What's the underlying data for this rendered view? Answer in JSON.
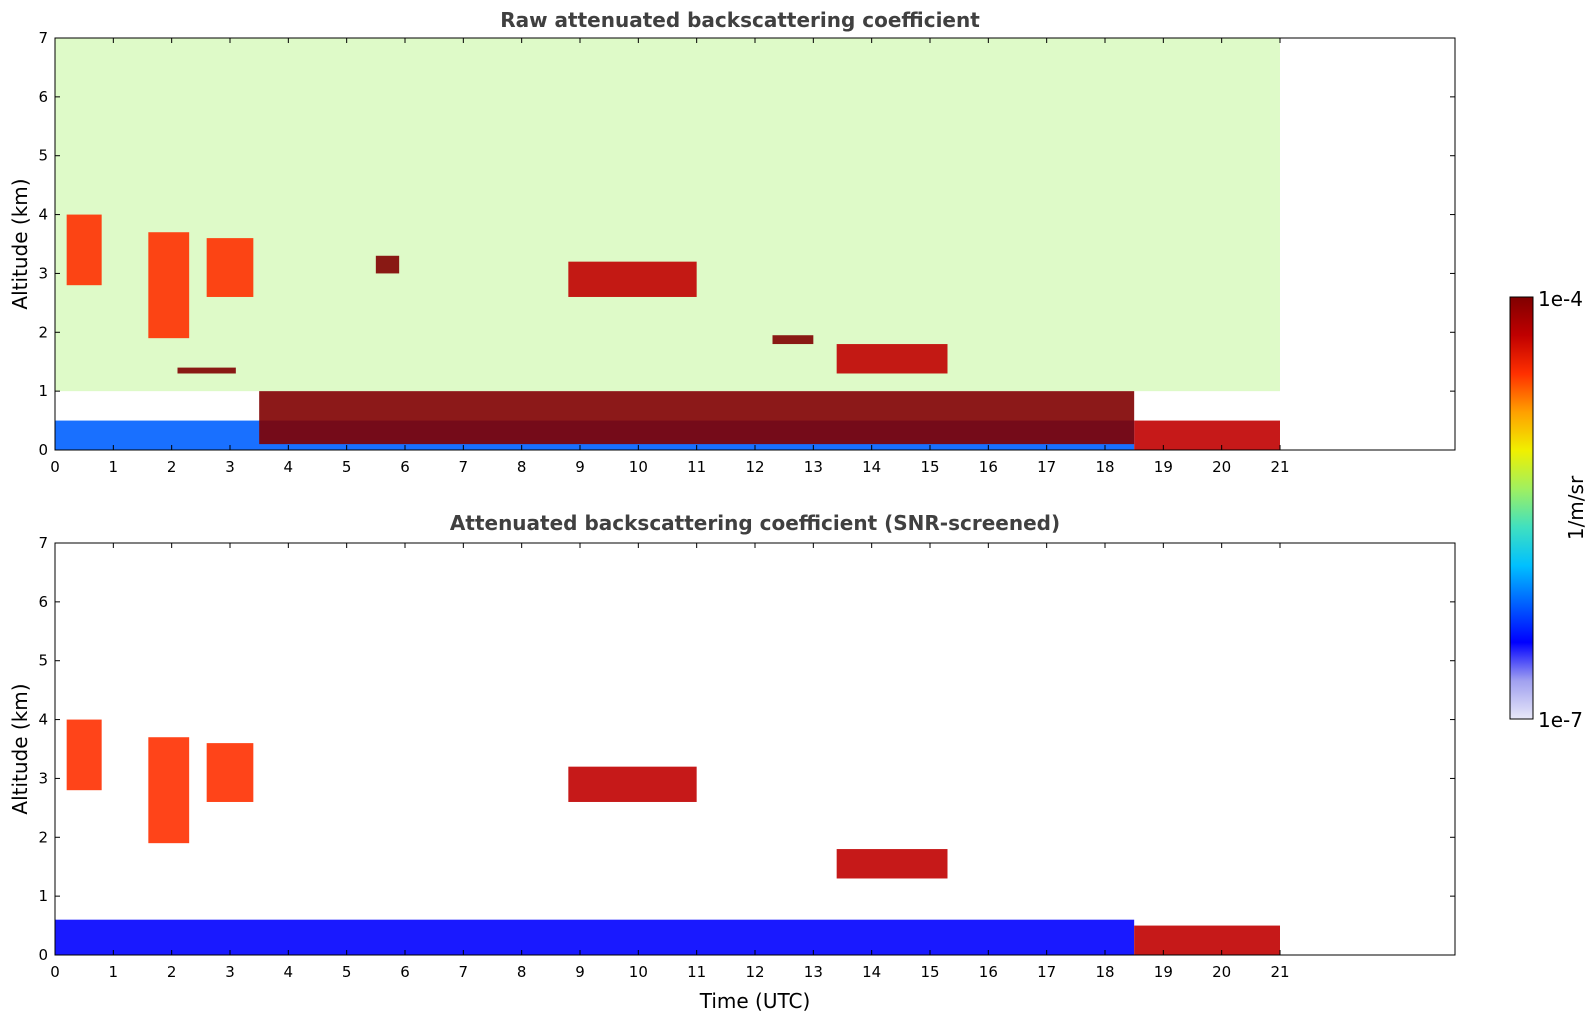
{
  "chart_data": [
    {
      "type": "heatmap",
      "title": "Raw attenuated backscattering coefficient",
      "xlabel": "",
      "ylabel": "Altitude (km)",
      "xlim": [
        0,
        24
      ],
      "ylim": [
        0,
        7
      ],
      "xticks": [
        "0",
        "1",
        "2",
        "3",
        "4",
        "5",
        "6",
        "7",
        "8",
        "9",
        "10",
        "11",
        "12",
        "13",
        "14",
        "15",
        "16",
        "17",
        "18",
        "19",
        "20",
        "21"
      ],
      "yticks": [
        "0",
        "1",
        "2",
        "3",
        "4",
        "5",
        "6",
        "7"
      ],
      "data_extent_hours": [
        0,
        21
      ],
      "features": [
        {
          "name": "noise-background",
          "t0": 0,
          "t1": 21,
          "z0": 1.0,
          "z1": 7.0,
          "level": 0.55
        },
        {
          "name": "boundary-layer",
          "t0": 0,
          "t1": 18.5,
          "z0": 0.0,
          "z1": 0.5,
          "level": 0.25
        },
        {
          "name": "cirrus-early",
          "t0": 0.2,
          "t1": 0.8,
          "z0": 2.8,
          "z1": 4.0,
          "level": 0.85
        },
        {
          "name": "cirrus-2h",
          "t0": 1.6,
          "t1": 2.3,
          "z0": 1.9,
          "z1": 3.7,
          "level": 0.8
        },
        {
          "name": "cirrus-3h",
          "t0": 2.6,
          "t1": 3.4,
          "z0": 2.6,
          "z1": 3.6,
          "level": 0.8
        },
        {
          "name": "layer-1.3km",
          "t0": 2.1,
          "t1": 3.1,
          "z0": 1.3,
          "z1": 1.4,
          "level": 1.0
        },
        {
          "name": "cloud-5.7h",
          "t0": 5.5,
          "t1": 5.9,
          "z0": 3.0,
          "z1": 3.3,
          "level": 1.0
        },
        {
          "name": "cloud-9-11h",
          "t0": 8.8,
          "t1": 11.0,
          "z0": 2.6,
          "z1": 3.2,
          "level": 0.95
        },
        {
          "name": "cloud-12-13h",
          "t0": 12.3,
          "t1": 13.0,
          "z0": 1.8,
          "z1": 1.95,
          "level": 1.0
        },
        {
          "name": "cloud-14-15h",
          "t0": 13.4,
          "t1": 15.3,
          "z0": 1.3,
          "z1": 1.8,
          "level": 0.95
        },
        {
          "name": "pbl-top",
          "t0": 3.5,
          "t1": 18.5,
          "z0": 0.1,
          "z1": 1.0,
          "level": 1.0
        },
        {
          "name": "fog-18-21h",
          "t0": 18.5,
          "t1": 21,
          "z0": 0.0,
          "z1": 0.5,
          "level": 0.95
        }
      ]
    },
    {
      "type": "heatmap",
      "title": "Attenuated backscattering coefficient (SNR-screened)",
      "xlabel": "Time (UTC)",
      "ylabel": "Altitude (km)",
      "xlim": [
        0,
        24
      ],
      "ylim": [
        0,
        7
      ],
      "xticks": [
        "0",
        "1",
        "2",
        "3",
        "4",
        "5",
        "6",
        "7",
        "8",
        "9",
        "10",
        "11",
        "12",
        "13",
        "14",
        "15",
        "16",
        "17",
        "18",
        "19",
        "20",
        "21"
      ],
      "yticks": [
        "0",
        "1",
        "2",
        "3",
        "4",
        "5",
        "6",
        "7"
      ],
      "data_extent_hours": [
        0,
        21
      ],
      "features": [
        {
          "name": "boundary-layer",
          "t0": 0,
          "t1": 18.5,
          "z0": 0.0,
          "z1": 0.6,
          "level": 0.22
        },
        {
          "name": "cirrus-early",
          "t0": 0.2,
          "t1": 0.8,
          "z0": 2.8,
          "z1": 4.0,
          "level": 0.85
        },
        {
          "name": "cirrus-2h",
          "t0": 1.6,
          "t1": 2.3,
          "z0": 1.9,
          "z1": 3.7,
          "level": 0.8
        },
        {
          "name": "cirrus-3h",
          "t0": 2.6,
          "t1": 3.4,
          "z0": 2.6,
          "z1": 3.6,
          "level": 0.8
        },
        {
          "name": "cloud-9-11h",
          "t0": 8.8,
          "t1": 11.0,
          "z0": 2.6,
          "z1": 3.2,
          "level": 0.95
        },
        {
          "name": "cloud-14-15h",
          "t0": 13.4,
          "t1": 15.3,
          "z0": 1.3,
          "z1": 1.8,
          "level": 0.95
        },
        {
          "name": "fog-18-21h",
          "t0": 18.5,
          "t1": 21,
          "z0": 0.0,
          "z1": 0.5,
          "level": 0.95
        }
      ]
    }
  ],
  "colorbar": {
    "max_label": "1e-4",
    "min_label": "1e-7",
    "unit_label": "1/m/sr",
    "colors": [
      "#e8e8f8",
      "#a0a0f0",
      "#0000ff",
      "#0060ff",
      "#00c0ff",
      "#40e0c0",
      "#a0f060",
      "#f0f000",
      "#ffa000",
      "#ff3000",
      "#c00000",
      "#800000"
    ]
  }
}
